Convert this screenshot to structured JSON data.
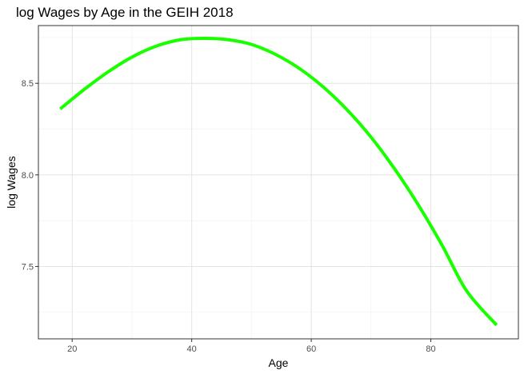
{
  "chart_data": {
    "type": "line",
    "title": "log Wages by Age in the GEIH 2018",
    "xlabel": "Age",
    "ylabel": "log Wages",
    "xlim": [
      14.35,
      94.65
    ],
    "ylim": [
      7.105,
      8.815
    ],
    "x_ticks": [
      20,
      40,
      60,
      80
    ],
    "x_tick_labels": [
      "20",
      "40",
      "60",
      "80"
    ],
    "y_ticks": [
      7.5,
      8.0,
      8.5
    ],
    "y_tick_labels": [
      "7.5",
      "8.0",
      "8.5"
    ],
    "grid": true,
    "legend": "none",
    "series": [
      {
        "color": "#1aff00",
        "x": [
          18,
          22,
          26,
          30,
          34,
          38,
          42,
          46,
          50,
          54,
          58,
          62,
          66,
          70,
          74,
          78,
          82,
          86,
          91
        ],
        "y": [
          8.36,
          8.466,
          8.562,
          8.643,
          8.702,
          8.737,
          8.745,
          8.738,
          8.712,
          8.658,
          8.581,
          8.48,
          8.355,
          8.206,
          8.03,
          7.831,
          7.609,
          7.366,
          7.18
        ]
      }
    ]
  }
}
